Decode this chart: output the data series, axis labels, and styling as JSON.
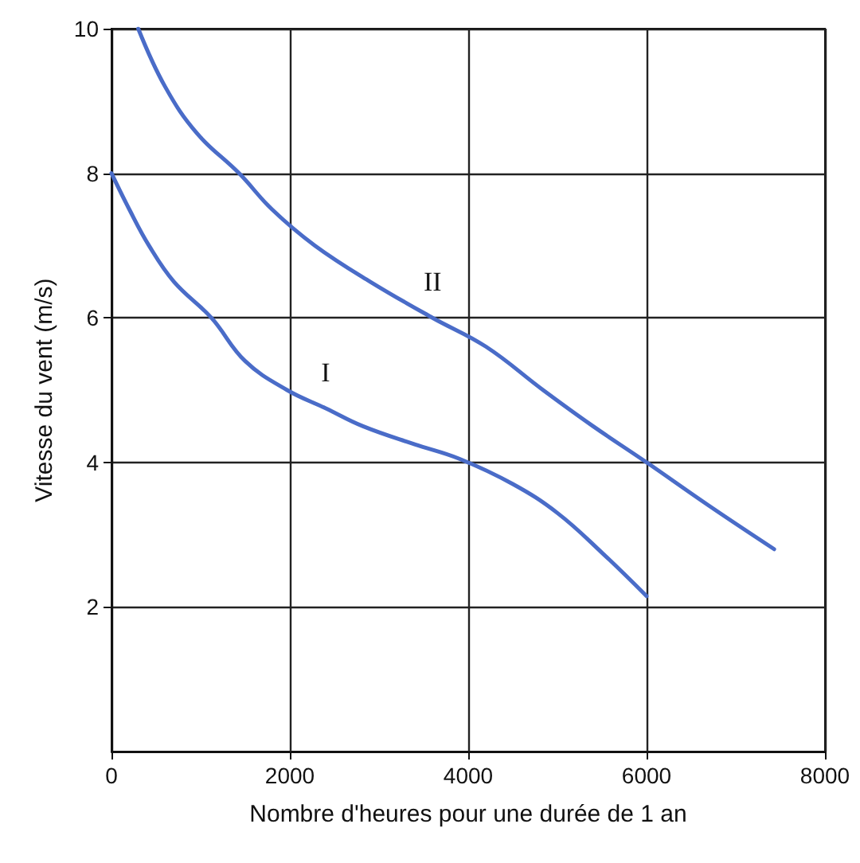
{
  "chart_data": {
    "type": "line",
    "xlabel": "Nombre d'heures pour une durée de 1 an",
    "ylabel": "Vitesse du vent (m/s)",
    "xlim": [
      0,
      8000
    ],
    "xticks": [
      0,
      {
        "value": 2000,
        "label": "2000"
      },
      {
        "value": 4000,
        "label": "4000"
      },
      {
        "value": 6000,
        "label": "6000"
      },
      {
        "value": 8000,
        "label": "8000"
      }
    ],
    "ylim": [
      0,
      10
    ],
    "yticks": [
      2,
      4,
      6,
      8,
      10
    ],
    "grid": true,
    "marker": "none",
    "line_style": "solid",
    "series": [
      {
        "color": "#4a6cc8",
        "x": [
          0,
          200,
          420,
          700,
          1120,
          1500,
          1970,
          2400,
          2820,
          3400,
          3900,
          4500,
          5000,
          5500,
          6000
        ],
        "values": [
          8,
          7.5,
          7,
          6.5,
          6,
          5.4,
          5,
          4.75,
          4.5,
          4.25,
          4.05,
          3.7,
          3.3,
          2.75,
          2.15
        ]
      },
      {
        "color": "#4a6cc8",
        "x": [
          300,
          600,
          960,
          1430,
          1800,
          2280,
          2900,
          3600,
          4200,
          4840,
          5400,
          6000,
          6700,
          7430
        ],
        "values": [
          10,
          9.2,
          8.55,
          8,
          7.5,
          7,
          6.5,
          6,
          5.6,
          5,
          4.5,
          4,
          3.4,
          2.8
        ]
      }
    ],
    "annotations": [
      "I",
      "II"
    ]
  }
}
